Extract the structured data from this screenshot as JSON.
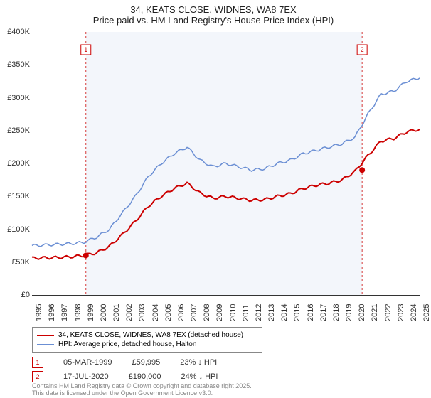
{
  "title_line1": "34, KEATS CLOSE, WIDNES, WA8 7EX",
  "title_line2": "Price paid vs. HM Land Registry's House Price Index (HPI)",
  "chart": {
    "type": "line",
    "x_years": [
      1995,
      1996,
      1997,
      1998,
      1999,
      2000,
      2001,
      2002,
      2003,
      2004,
      2005,
      2006,
      2007,
      2008,
      2009,
      2010,
      2011,
      2012,
      2013,
      2014,
      2015,
      2016,
      2017,
      2018,
      2019,
      2020,
      2021,
      2022,
      2023,
      2024,
      2025
    ],
    "ylim": [
      0,
      400000
    ],
    "ytick_step": 50000,
    "ytick_labels": [
      "£0",
      "£50K",
      "£100K",
      "£150K",
      "£200K",
      "£250K",
      "£300K",
      "£350K",
      "£400K"
    ],
    "band_start_year": 1999.17,
    "band_end_year": 2020.55,
    "background_color": "#ffffff",
    "band_color": "#f3f6fb",
    "grid": false,
    "series": [
      {
        "name": "hpi",
        "label": "HPI: Average price, detached house, Halton",
        "color": "#6b8fd4",
        "line_width": 1.5,
        "data": [
          [
            1995,
            75000
          ],
          [
            1996,
            76000
          ],
          [
            1997,
            77000
          ],
          [
            1998,
            78000
          ],
          [
            1999,
            80000
          ],
          [
            2000,
            88000
          ],
          [
            2001,
            100000
          ],
          [
            2002,
            125000
          ],
          [
            2003,
            150000
          ],
          [
            2004,
            180000
          ],
          [
            2005,
            200000
          ],
          [
            2006,
            215000
          ],
          [
            2007,
            225000
          ],
          [
            2008,
            205000
          ],
          [
            2009,
            195000
          ],
          [
            2010,
            200000
          ],
          [
            2011,
            195000
          ],
          [
            2012,
            190000
          ],
          [
            2013,
            192000
          ],
          [
            2014,
            200000
          ],
          [
            2015,
            205000
          ],
          [
            2016,
            215000
          ],
          [
            2017,
            220000
          ],
          [
            2018,
            225000
          ],
          [
            2019,
            230000
          ],
          [
            2020,
            240000
          ],
          [
            2021,
            275000
          ],
          [
            2022,
            305000
          ],
          [
            2023,
            310000
          ],
          [
            2024,
            325000
          ],
          [
            2025,
            330000
          ]
        ]
      },
      {
        "name": "price_paid",
        "label": "34, KEATS CLOSE, WIDNES, WA8 7EX (detached house)",
        "color": "#cc0000",
        "line_width": 2,
        "data": [
          [
            1995,
            56000
          ],
          [
            1996,
            56500
          ],
          [
            1997,
            57000
          ],
          [
            1998,
            58000
          ],
          [
            1999,
            60000
          ],
          [
            2000,
            64000
          ],
          [
            2001,
            74000
          ],
          [
            2002,
            92000
          ],
          [
            2003,
            112000
          ],
          [
            2004,
            135000
          ],
          [
            2005,
            150000
          ],
          [
            2006,
            162000
          ],
          [
            2007,
            170000
          ],
          [
            2008,
            155000
          ],
          [
            2009,
            147000
          ],
          [
            2010,
            150000
          ],
          [
            2011,
            147000
          ],
          [
            2012,
            144000
          ],
          [
            2013,
            145000
          ],
          [
            2014,
            150000
          ],
          [
            2015,
            154000
          ],
          [
            2016,
            162000
          ],
          [
            2017,
            167000
          ],
          [
            2018,
            170000
          ],
          [
            2019,
            175000
          ],
          [
            2020,
            188000
          ],
          [
            2021,
            212000
          ],
          [
            2022,
            234000
          ],
          [
            2023,
            238000
          ],
          [
            2024,
            248000
          ],
          [
            2025,
            252000
          ]
        ]
      }
    ],
    "sale_markers": [
      {
        "n": "1",
        "year": 1999.17,
        "value": 59995,
        "date": "05-MAR-1999",
        "price": "£59,995",
        "vs_hpi": "23% ↓ HPI"
      },
      {
        "n": "2",
        "year": 2020.55,
        "value": 190000,
        "date": "17-JUL-2020",
        "price": "£190,000",
        "vs_hpi": "24% ↓ HPI"
      }
    ]
  },
  "legend": {
    "items": [
      {
        "color": "#cc0000",
        "width": 2,
        "label": "34, KEATS CLOSE, WIDNES, WA8 7EX (detached house)"
      },
      {
        "color": "#6b8fd4",
        "width": 1.5,
        "label": "HPI: Average price, detached house, Halton"
      }
    ]
  },
  "attribution_line1": "Contains HM Land Registry data © Crown copyright and database right 2025.",
  "attribution_line2": "This data is licensed under the Open Government Licence v3.0."
}
